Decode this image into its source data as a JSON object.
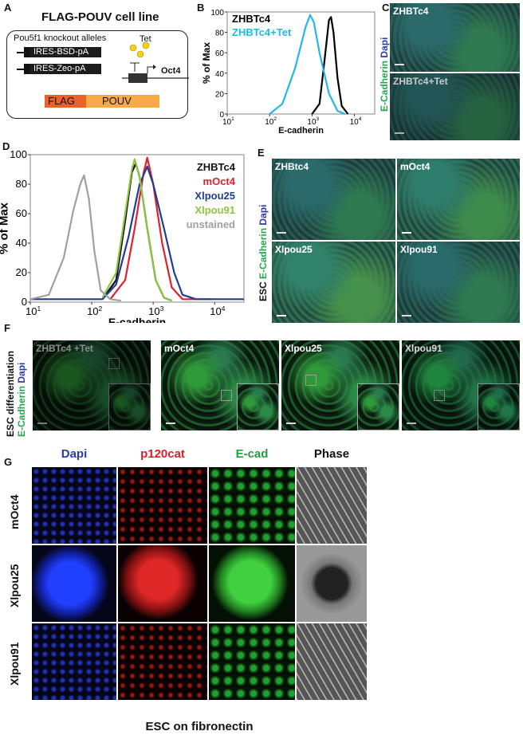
{
  "panels": {
    "A": "A",
    "B": "B",
    "C": "C",
    "D": "D",
    "E": "E",
    "F": "F",
    "G": "G"
  },
  "panelA": {
    "title": "FLAG-POUV cell line",
    "alleles_label": "Pou5f1 knockout alleles",
    "allele1": "IRES-BSD-pA",
    "allele2": "IRES-Zeo-pA",
    "tet": "Tet",
    "gene": "Oct4",
    "flag": "FLAG",
    "pouv": "POUV",
    "colors": {
      "flag": "#e8622a",
      "pouv": "#f8a94a",
      "tet": "#f2d318"
    }
  },
  "panelC": {
    "side_label_1": "E-Cadherin",
    "side_label_2": "Dapi",
    "images": [
      "ZHBTc4",
      "ZHBTc4+Tet"
    ]
  },
  "panelE": {
    "side_label_0": "ESC",
    "side_label_1": "E-Cadherin",
    "side_label_2": "Dapi",
    "images": [
      "ZHBtc4",
      "mOct4",
      "Xlpou25",
      "Xlpou91"
    ]
  },
  "panelF": {
    "side_label_0": "ESC differentiation",
    "side_label_1": "E-Cadherin",
    "side_label_2": "Dapi",
    "images": [
      "ZHBTc4 +Tet",
      "mOct4",
      "Xlpou25",
      "Xlpou91"
    ]
  },
  "panelG": {
    "columns": [
      "Dapi",
      "p120cat",
      "E-cad",
      "Phase"
    ],
    "rows": [
      "mOct4",
      "Xlpou25",
      "Xlpou91"
    ],
    "caption": "ESC on fibronectin",
    "column_colors": [
      "#2a3aa8",
      "#d8202a",
      "#20a040",
      "#111111"
    ]
  },
  "chart_data": [
    {
      "type": "line",
      "panel": "B",
      "xlabel": "E-cadherin",
      "ylabel": "% of Max",
      "xscale": "log",
      "xlim": [
        10,
        30000
      ],
      "ylim": [
        0,
        100
      ],
      "yticks": [
        "0",
        "20",
        "40",
        "60",
        "80",
        "100"
      ],
      "xticks": [
        {
          "base": "10",
          "exp": "1"
        },
        {
          "base": "10",
          "exp": "2"
        },
        {
          "base": "10",
          "exp": "3"
        },
        {
          "base": "10",
          "exp": "4"
        }
      ],
      "legend": "top-left",
      "series": [
        {
          "name": "ZHBTc4",
          "color": "#000000",
          "points": [
            [
              1000,
              0
            ],
            [
              1500,
              10
            ],
            [
              2000,
              55
            ],
            [
              2500,
              92
            ],
            [
              2800,
              95
            ],
            [
              3200,
              80
            ],
            [
              4000,
              35
            ],
            [
              5000,
              8
            ],
            [
              7000,
              0
            ]
          ]
        },
        {
          "name": "ZHBTc4+Tet",
          "color": "#22b8e6",
          "points": [
            [
              100,
              0
            ],
            [
              200,
              10
            ],
            [
              400,
              45
            ],
            [
              700,
              85
            ],
            [
              900,
              97
            ],
            [
              1100,
              90
            ],
            [
              1500,
              60
            ],
            [
              2500,
              20
            ],
            [
              4000,
              3
            ],
            [
              6000,
              0
            ]
          ]
        }
      ]
    },
    {
      "type": "line",
      "panel": "D",
      "xlabel": "E-cadherin",
      "ylabel": "% of Max",
      "xscale": "log",
      "xlim": [
        10,
        30000
      ],
      "ylim": [
        0,
        100
      ],
      "yticks": [
        "0",
        "20",
        "40",
        "60",
        "80",
        "100"
      ],
      "xticks": [
        {
          "base": "10",
          "exp": "1"
        },
        {
          "base": "10",
          "exp": "2"
        },
        {
          "base": "10",
          "exp": "3"
        },
        {
          "base": "10",
          "exp": "4"
        }
      ],
      "legend": "top-right",
      "series": [
        {
          "name": "ZHBTc4",
          "color": "#111111",
          "points": [
            [
              150,
              2
            ],
            [
              250,
              15
            ],
            [
              350,
              55
            ],
            [
              450,
              88
            ],
            [
              520,
              94
            ],
            [
              600,
              85
            ],
            [
              800,
              50
            ],
            [
              1100,
              15
            ],
            [
              1500,
              3
            ],
            [
              2000,
              1
            ]
          ]
        },
        {
          "name": "mOct4",
          "color": "#e0202a",
          "points": [
            [
              200,
              2
            ],
            [
              350,
              15
            ],
            [
              500,
              50
            ],
            [
              700,
              88
            ],
            [
              800,
              98
            ],
            [
              1000,
              80
            ],
            [
              1400,
              40
            ],
            [
              2000,
              10
            ],
            [
              3000,
              2
            ],
            [
              9000,
              2
            ]
          ]
        },
        {
          "name": "Xlpou25",
          "color": "#203c96",
          "points": [
            [
              10,
              2
            ],
            [
              150,
              2
            ],
            [
              250,
              12
            ],
            [
              400,
              45
            ],
            [
              600,
              80
            ],
            [
              800,
              92
            ],
            [
              1000,
              80
            ],
            [
              1500,
              50
            ],
            [
              2200,
              20
            ],
            [
              3000,
              5
            ],
            [
              5000,
              2
            ],
            [
              30000,
              2
            ]
          ]
        },
        {
          "name": "Xlpou91",
          "color": "#8cc63f",
          "points": [
            [
              150,
              3
            ],
            [
              250,
              20
            ],
            [
              350,
              60
            ],
            [
              450,
              90
            ],
            [
              500,
              97
            ],
            [
              600,
              85
            ],
            [
              800,
              50
            ],
            [
              1100,
              15
            ],
            [
              1500,
              3
            ],
            [
              2000,
              1
            ]
          ]
        },
        {
          "name": "unstained",
          "color": "#a0a0a0",
          "points": [
            [
              10,
              2
            ],
            [
              20,
              5
            ],
            [
              35,
              30
            ],
            [
              50,
              62
            ],
            [
              65,
              80
            ],
            [
              75,
              86
            ],
            [
              90,
              70
            ],
            [
              110,
              35
            ],
            [
              140,
              8
            ],
            [
              200,
              2
            ],
            [
              300,
              1
            ]
          ]
        }
      ]
    }
  ]
}
